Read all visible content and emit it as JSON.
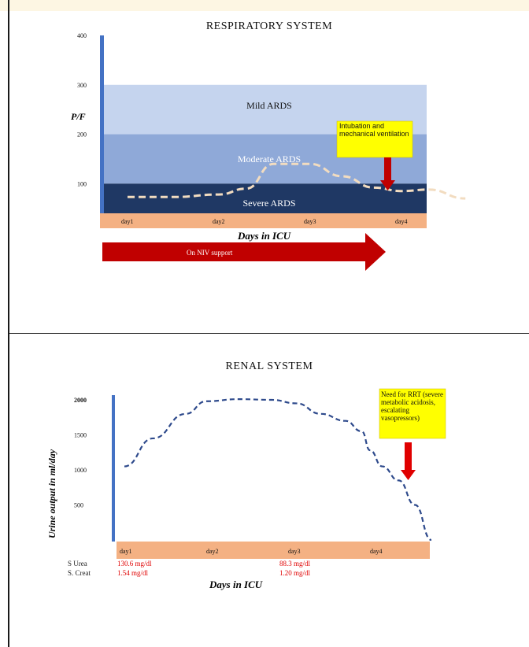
{
  "chart_data": [
    {
      "type": "area",
      "title": "RESPIRATORY SYSTEM",
      "ylabel": "P/F",
      "xlabel": "Days in ICU",
      "ylim": [
        40,
        400
      ],
      "yticks": [
        100,
        200,
        300,
        400
      ],
      "categories": [
        "day1",
        "day2",
        "day3",
        "day4"
      ],
      "bands": [
        {
          "label": "Mild ARDS",
          "from": 200,
          "to": 300,
          "color": "#c5d4ee"
        },
        {
          "label": "Moderate ARDS",
          "from": 100,
          "to": 200,
          "color": "#8fa9d8"
        },
        {
          "label": "Severe ARDS",
          "from": 40,
          "to": 100,
          "color": "#1f3864"
        }
      ],
      "series": [
        {
          "x": [
            0.0,
            0.5,
            1.0,
            1.3,
            1.6,
            2.0,
            2.35,
            2.7,
            3.0,
            3.3,
            3.7
          ],
          "y": [
            73,
            73,
            78,
            90,
            140,
            140,
            115,
            92,
            85,
            88,
            70
          ]
        }
      ],
      "annotations": [
        {
          "text": "Intubation and mechanical ventilation",
          "x": 3.1,
          "color": "#ffff00"
        }
      ],
      "arrow_label": "On NIV support",
      "colors": {
        "axis": "#4472c4",
        "xband": "#f4b183",
        "line": "#f2dcc0",
        "arrow": "#c00000"
      }
    },
    {
      "type": "line",
      "title": "RENAL SYSTEM",
      "ylabel": "Urine output in ml/day",
      "xlabel": "Days in ICU",
      "ylim": [
        0,
        2000
      ],
      "yticks": [
        500,
        1000,
        1500,
        2000
      ],
      "categories": [
        "day1",
        "day2",
        "day3",
        "day4"
      ],
      "series": [
        {
          "x": [
            0.0,
            0.35,
            0.75,
            1.0,
            1.4,
            1.8,
            2.1,
            2.4,
            2.7,
            2.9,
            3.0,
            3.15,
            3.35,
            3.55,
            3.75
          ],
          "y": [
            1050,
            1450,
            1800,
            1980,
            2010,
            2000,
            1950,
            1800,
            1700,
            1550,
            1280,
            1050,
            850,
            500,
            0
          ]
        }
      ],
      "annotations": [
        {
          "text": "Need for RRT (severe metabolic acidosis, escalating vasopressors)",
          "x": 3.4,
          "color": "#ffff00"
        }
      ],
      "lab_rows": [
        {
          "label": "S Urea",
          "values": [
            "130.6 mg/dl",
            "88.3 mg/dl"
          ]
        },
        {
          "label": "S. Creat",
          "values": [
            "1.54 mg/dl",
            "1.20 mg/dl"
          ]
        }
      ],
      "colors": {
        "axis": "#4472c4",
        "xband": "#f4b183",
        "line": "#2e4a8c",
        "arrow": "#e00000",
        "lab": "#e00000"
      }
    }
  ]
}
